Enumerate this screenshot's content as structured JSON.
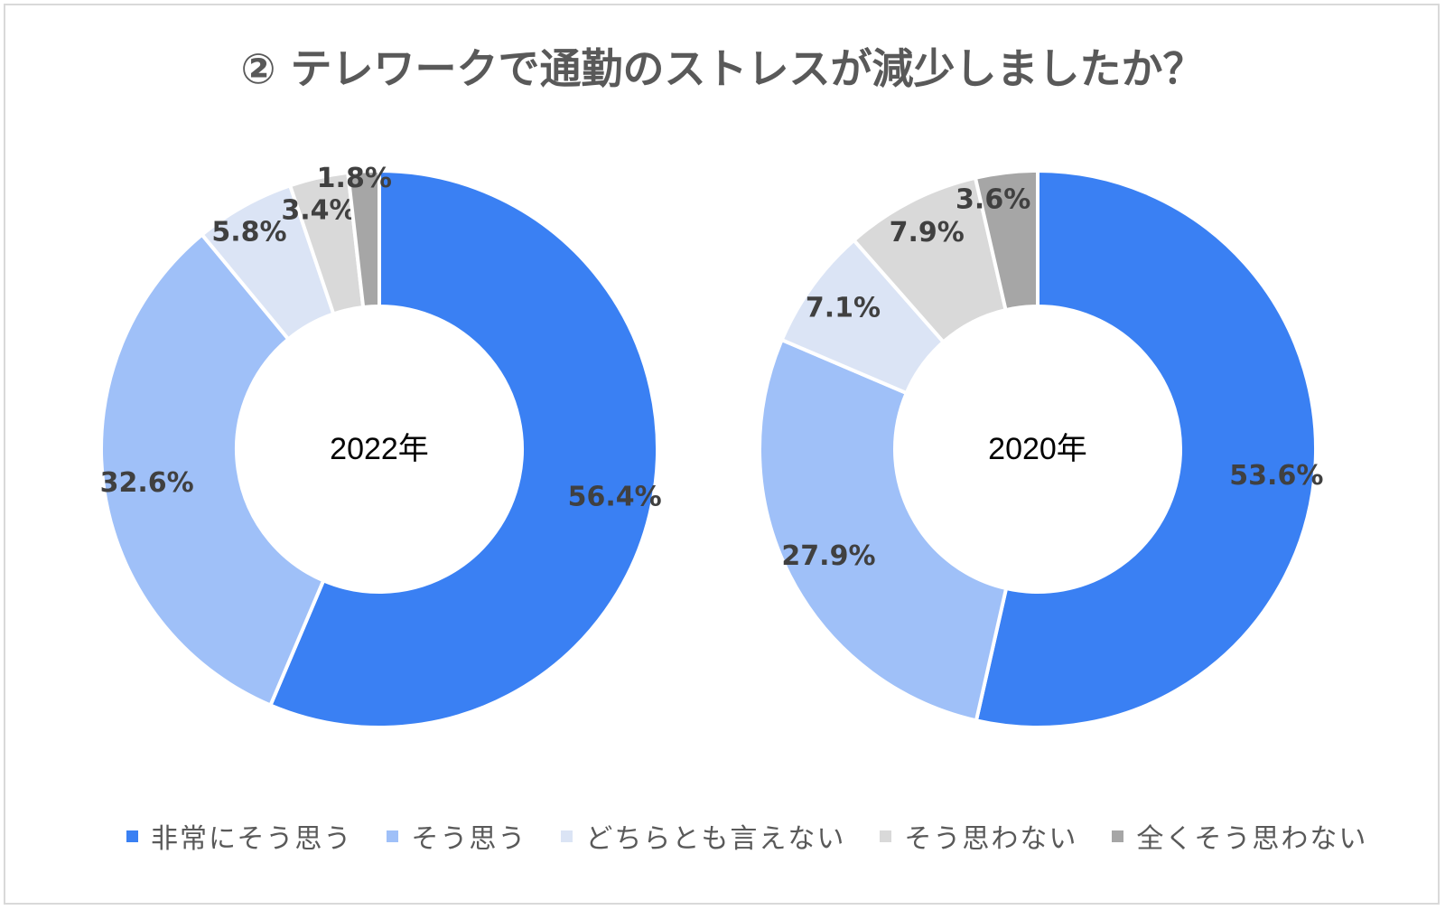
{
  "title": "② テレワークで通勤のストレスが減少しましたか？",
  "colors": [
    "#3a80f3",
    "#9fc0f8",
    "#dbe4f5",
    "#d9d9d9",
    "#a6a6a6"
  ],
  "legend": [
    "非常にそう思う",
    "そう思う",
    "どちらとも言えない",
    "そう思わない",
    "全くそう思わない"
  ],
  "chart_data": [
    {
      "type": "donut",
      "center_label": "2022年",
      "categories": [
        "非常にそう思う",
        "そう思う",
        "どちらとも言えない",
        "そう思わない",
        "全くそう思わない"
      ],
      "values": [
        56.4,
        32.6,
        5.8,
        3.4,
        1.8
      ],
      "labels": [
        "56.4%",
        "32.6%",
        "5.8%",
        "3.4%",
        "1.8%"
      ]
    },
    {
      "type": "donut",
      "center_label": "2020年",
      "categories": [
        "非常にそう思う",
        "そう思う",
        "どちらとも言えない",
        "そう思わない",
        "全くそう思わない"
      ],
      "values": [
        53.6,
        27.9,
        7.1,
        7.9,
        3.6
      ],
      "labels": [
        "53.6%",
        "27.9%",
        "7.1%",
        "7.9%",
        "3.6%"
      ]
    }
  ]
}
